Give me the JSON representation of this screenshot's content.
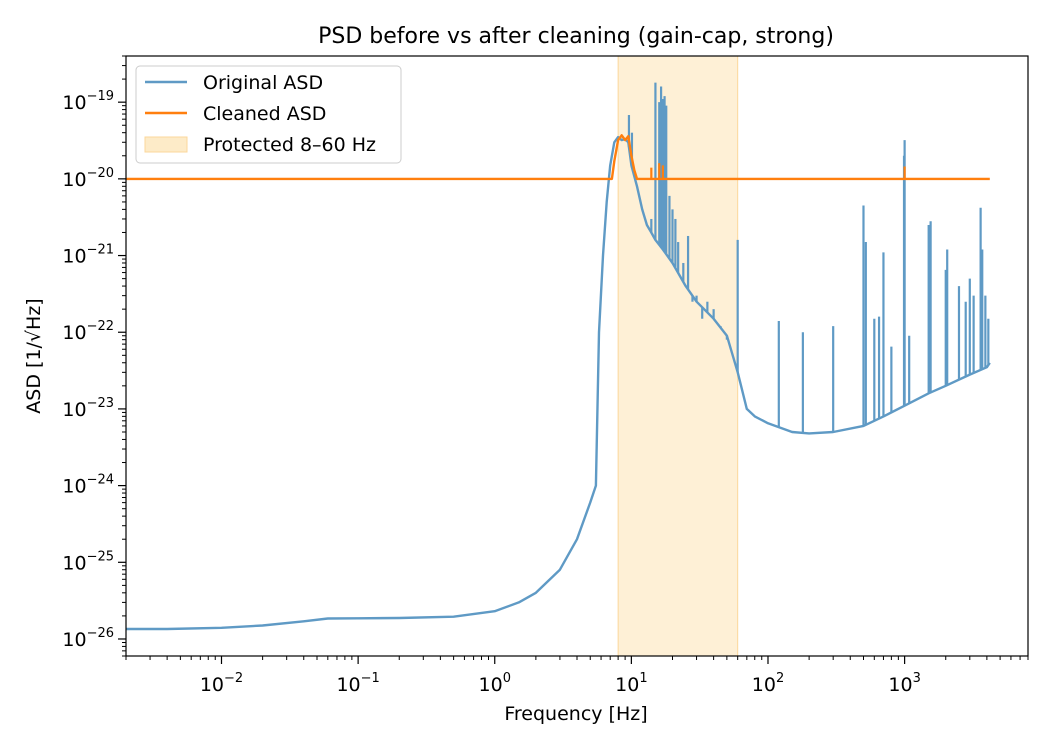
{
  "chart_data": {
    "type": "line",
    "title": "PSD before vs after cleaning (gain-cap, strong)",
    "xlabel": "Frequency [Hz]",
    "ylabel": "ASD [1/√Hz]",
    "xscale": "log",
    "yscale": "log",
    "xlim": [
      0.002,
      8000
    ],
    "ylim": [
      6e-27,
      4e-19
    ],
    "grid": false,
    "legend_position": "top-left",
    "x_ticks": [
      {
        "value": 0.01,
        "base": "10",
        "exp": "−2"
      },
      {
        "value": 0.1,
        "base": "10",
        "exp": "−1"
      },
      {
        "value": 1,
        "base": "10",
        "exp": "0"
      },
      {
        "value": 10,
        "base": "10",
        "exp": "1"
      },
      {
        "value": 100,
        "base": "10",
        "exp": "2"
      },
      {
        "value": 1000,
        "base": "10",
        "exp": "3"
      }
    ],
    "y_ticks": [
      {
        "value": 1e-26,
        "base": "10",
        "exp": "−26"
      },
      {
        "value": 1e-25,
        "base": "10",
        "exp": "−25"
      },
      {
        "value": 1e-24,
        "base": "10",
        "exp": "−24"
      },
      {
        "value": 1e-23,
        "base": "10",
        "exp": "−23"
      },
      {
        "value": 1e-22,
        "base": "10",
        "exp": "−22"
      },
      {
        "value": 1e-21,
        "base": "10",
        "exp": "−21"
      },
      {
        "value": 1e-20,
        "base": "10",
        "exp": "−20"
      },
      {
        "value": 1e-19,
        "base": "10",
        "exp": "−19"
      }
    ],
    "shaded_region": {
      "name": "Protected 8–60 Hz",
      "x_range": [
        8,
        60
      ],
      "color": "#fdebc8"
    },
    "series": [
      {
        "name": "Original ASD",
        "color": "#5f9ac5",
        "x": [
          0.002,
          0.004,
          0.01,
          0.02,
          0.04,
          0.06,
          0.1,
          0.2,
          0.5,
          1,
          1.5,
          2,
          3,
          4,
          5,
          5.5,
          5.8,
          6.2,
          6.6,
          7,
          7.5,
          8,
          8.5,
          9,
          9.5,
          10,
          11,
          12,
          13,
          14,
          15,
          17,
          20,
          25,
          30,
          40,
          50,
          60,
          70,
          80,
          100,
          150,
          200,
          300,
          500,
          700,
          1000,
          1500,
          2000,
          3000,
          4000,
          4200
        ],
        "y": [
          1.35e-26,
          1.35e-26,
          1.4e-26,
          1.5e-26,
          1.7e-26,
          1.85e-26,
          1.86e-26,
          1.88e-26,
          1.95e-26,
          2.3e-26,
          3e-26,
          4e-26,
          8e-26,
          2e-25,
          6e-25,
          1e-24,
          1e-22,
          1e-21,
          5e-21,
          1.5e-20,
          3e-20,
          3.5e-20,
          3.2e-20,
          3.3e-20,
          3e-20,
          1.5e-20,
          8e-21,
          4e-21,
          2.5e-21,
          2e-21,
          1.6e-21,
          1.2e-21,
          8e-22,
          4e-22,
          2.5e-22,
          1.5e-22,
          9e-23,
          3e-23,
          1e-23,
          8e-24,
          6.5e-24,
          5e-24,
          4.8e-24,
          5e-24,
          6e-24,
          8e-24,
          1.1e-23,
          1.6e-23,
          2e-23,
          2.8e-23,
          3.5e-23,
          4e-23
        ]
      },
      {
        "name": "Cleaned ASD",
        "color": "#ff7f0e",
        "x": [
          0.002,
          7.2,
          7.5,
          8,
          8.5,
          9,
          9.5,
          10,
          10.5,
          11,
          4200
        ],
        "y": [
          1e-20,
          1e-20,
          1.7e-20,
          3.2e-20,
          3.7e-20,
          3.2e-20,
          3.6e-20,
          2e-20,
          1.3e-20,
          1e-20,
          1e-20
        ]
      }
    ],
    "spikes": [
      {
        "series": "Original ASD",
        "x": [
          9.6,
          10.1,
          14,
          15,
          16,
          16.5,
          17,
          17.5,
          18,
          19,
          20,
          21,
          22,
          24,
          26,
          28,
          30,
          33,
          36,
          40,
          45,
          50,
          60,
          120,
          180,
          300,
          500,
          520,
          600,
          650,
          700,
          800,
          990,
          1000,
          1080,
          1500,
          1550,
          2000,
          2050,
          2500,
          2800,
          3000,
          3200,
          3600,
          3700,
          3900,
          4100
        ],
        "y": [
          6.8e-20,
          4e-20,
          3e-21,
          1.8e-19,
          1e-19,
          1.6e-19,
          1.1e-19,
          1.2e-19,
          9e-20,
          6e-21,
          4e-21,
          3e-21,
          1.5e-21,
          8e-22,
          1.8e-21,
          2.5e-22,
          3e-22,
          1.5e-22,
          2.5e-22,
          2e-22,
          1.2e-22,
          8e-23,
          1.6e-21,
          1.4e-22,
          1e-22,
          1.2e-22,
          4.5e-21,
          1.5e-21,
          1.5e-22,
          1.6e-22,
          1.1e-21,
          6.5e-23,
          2e-20,
          3.2e-20,
          9e-23,
          2.5e-21,
          2.8e-21,
          6.5e-22,
          1.2e-21,
          4e-22,
          2.5e-22,
          5e-22,
          3e-22,
          4.2e-21,
          1.2e-21,
          3e-22,
          1.5e-22
        ]
      },
      {
        "series": "Cleaned ASD",
        "x": [
          14,
          16,
          17,
          1000
        ],
        "y": [
          1.4e-20,
          1.6e-20,
          1.5e-20,
          1.45e-20
        ]
      }
    ]
  }
}
